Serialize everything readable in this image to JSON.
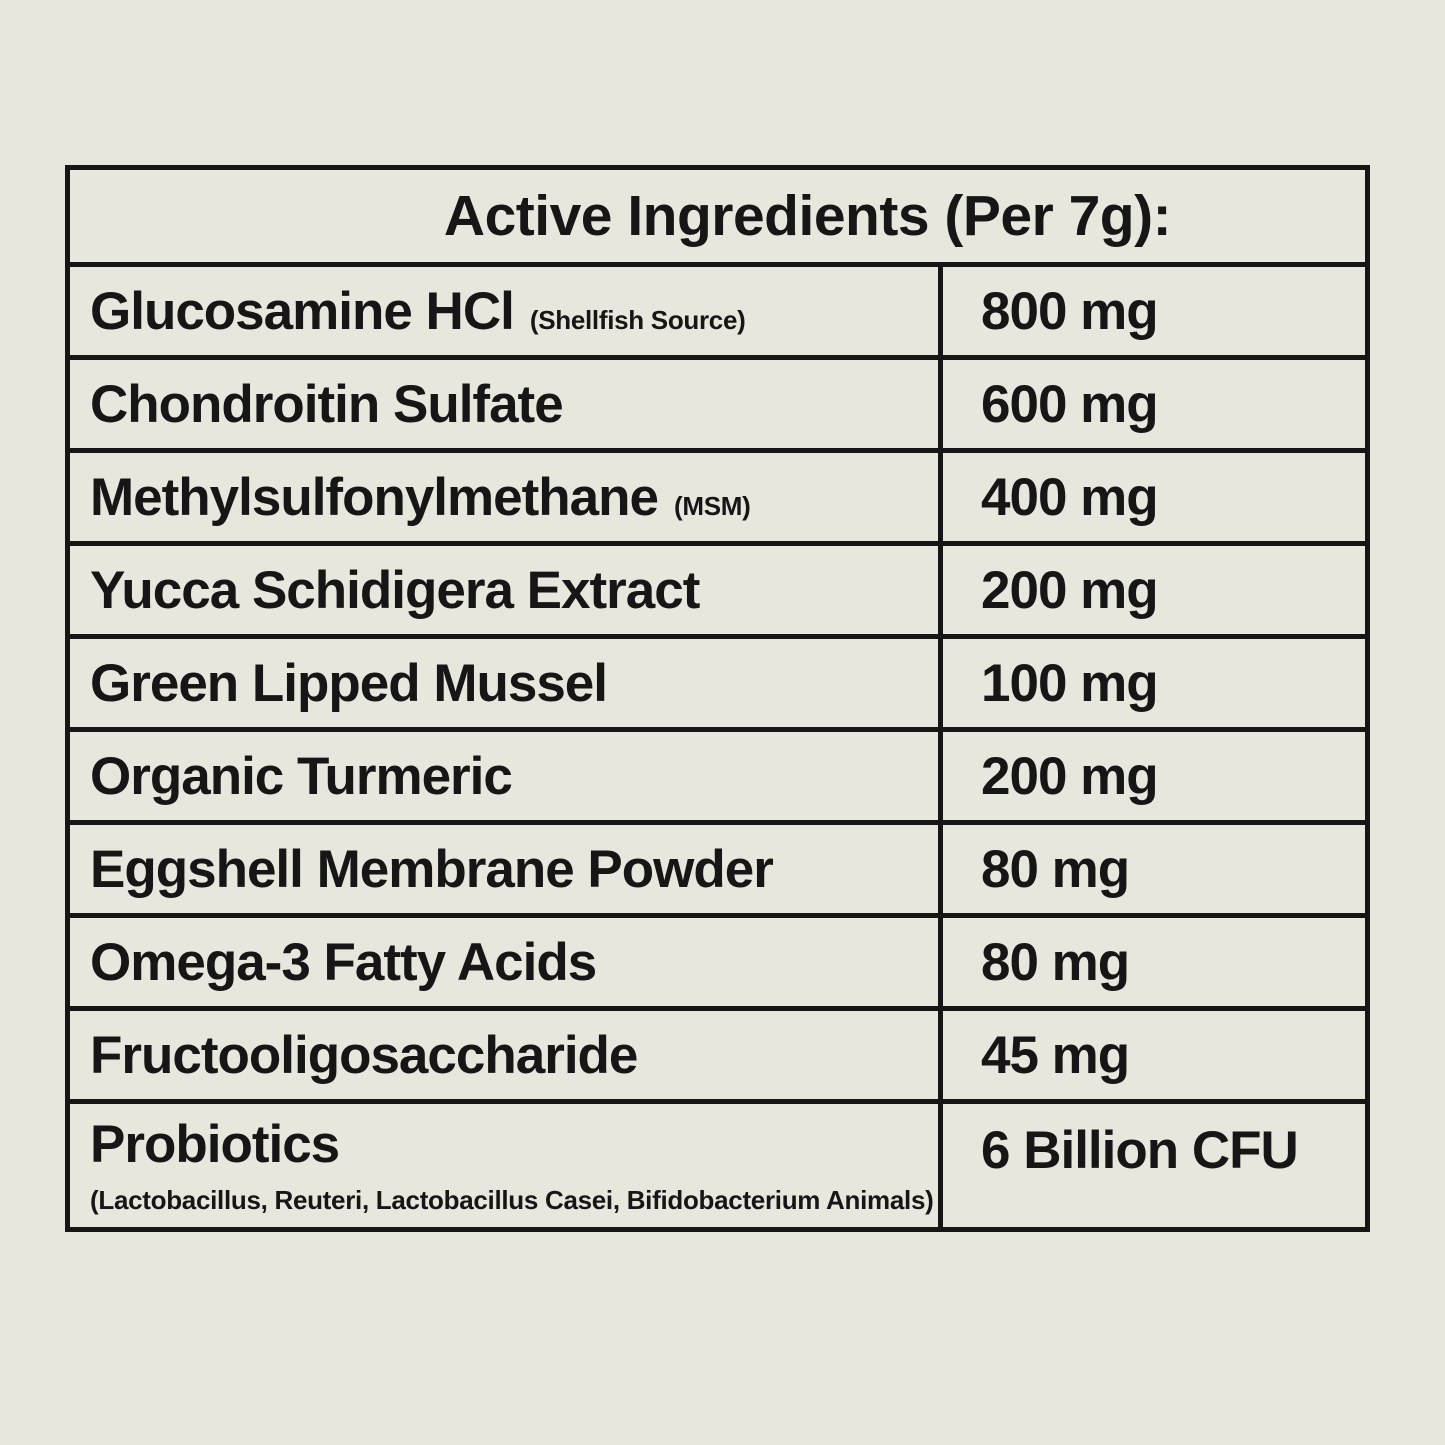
{
  "page": {
    "background_color": "#e8e7de",
    "text_color": "#161616",
    "border_color": "#161616"
  },
  "table": {
    "title": "Active Ingredients (Per 7g):",
    "rows": [
      {
        "name": "Glucosamine HCl",
        "note": "(Shellfish Source)",
        "subnote": "",
        "amount": "800 mg"
      },
      {
        "name": "Chondroitin Sulfate",
        "note": "",
        "subnote": "",
        "amount": "600 mg"
      },
      {
        "name": "Methylsulfonylmethane",
        "note": "(MSM)",
        "subnote": "",
        "amount": "400 mg"
      },
      {
        "name": "Yucca Schidigera Extract",
        "note": "",
        "subnote": "",
        "amount": "200 mg"
      },
      {
        "name": "Green Lipped Mussel",
        "note": "",
        "subnote": "",
        "amount": "100 mg"
      },
      {
        "name": "Organic Turmeric",
        "note": "",
        "subnote": "",
        "amount": "200 mg"
      },
      {
        "name": "Eggshell Membrane Powder",
        "note": "",
        "subnote": "",
        "amount": "80 mg"
      },
      {
        "name": "Omega-3 Fatty Acids",
        "note": "",
        "subnote": "",
        "amount": "80 mg"
      },
      {
        "name": "Fructooligosaccharide",
        "note": "",
        "subnote": "",
        "amount": "45 mg"
      },
      {
        "name": "Probiotics",
        "note": "",
        "subnote": "(Lactobacillus, Reuteri, Lactobacillus Casei, Bifidobacterium Animals)",
        "amount": "6 Billion CFU"
      }
    ]
  }
}
